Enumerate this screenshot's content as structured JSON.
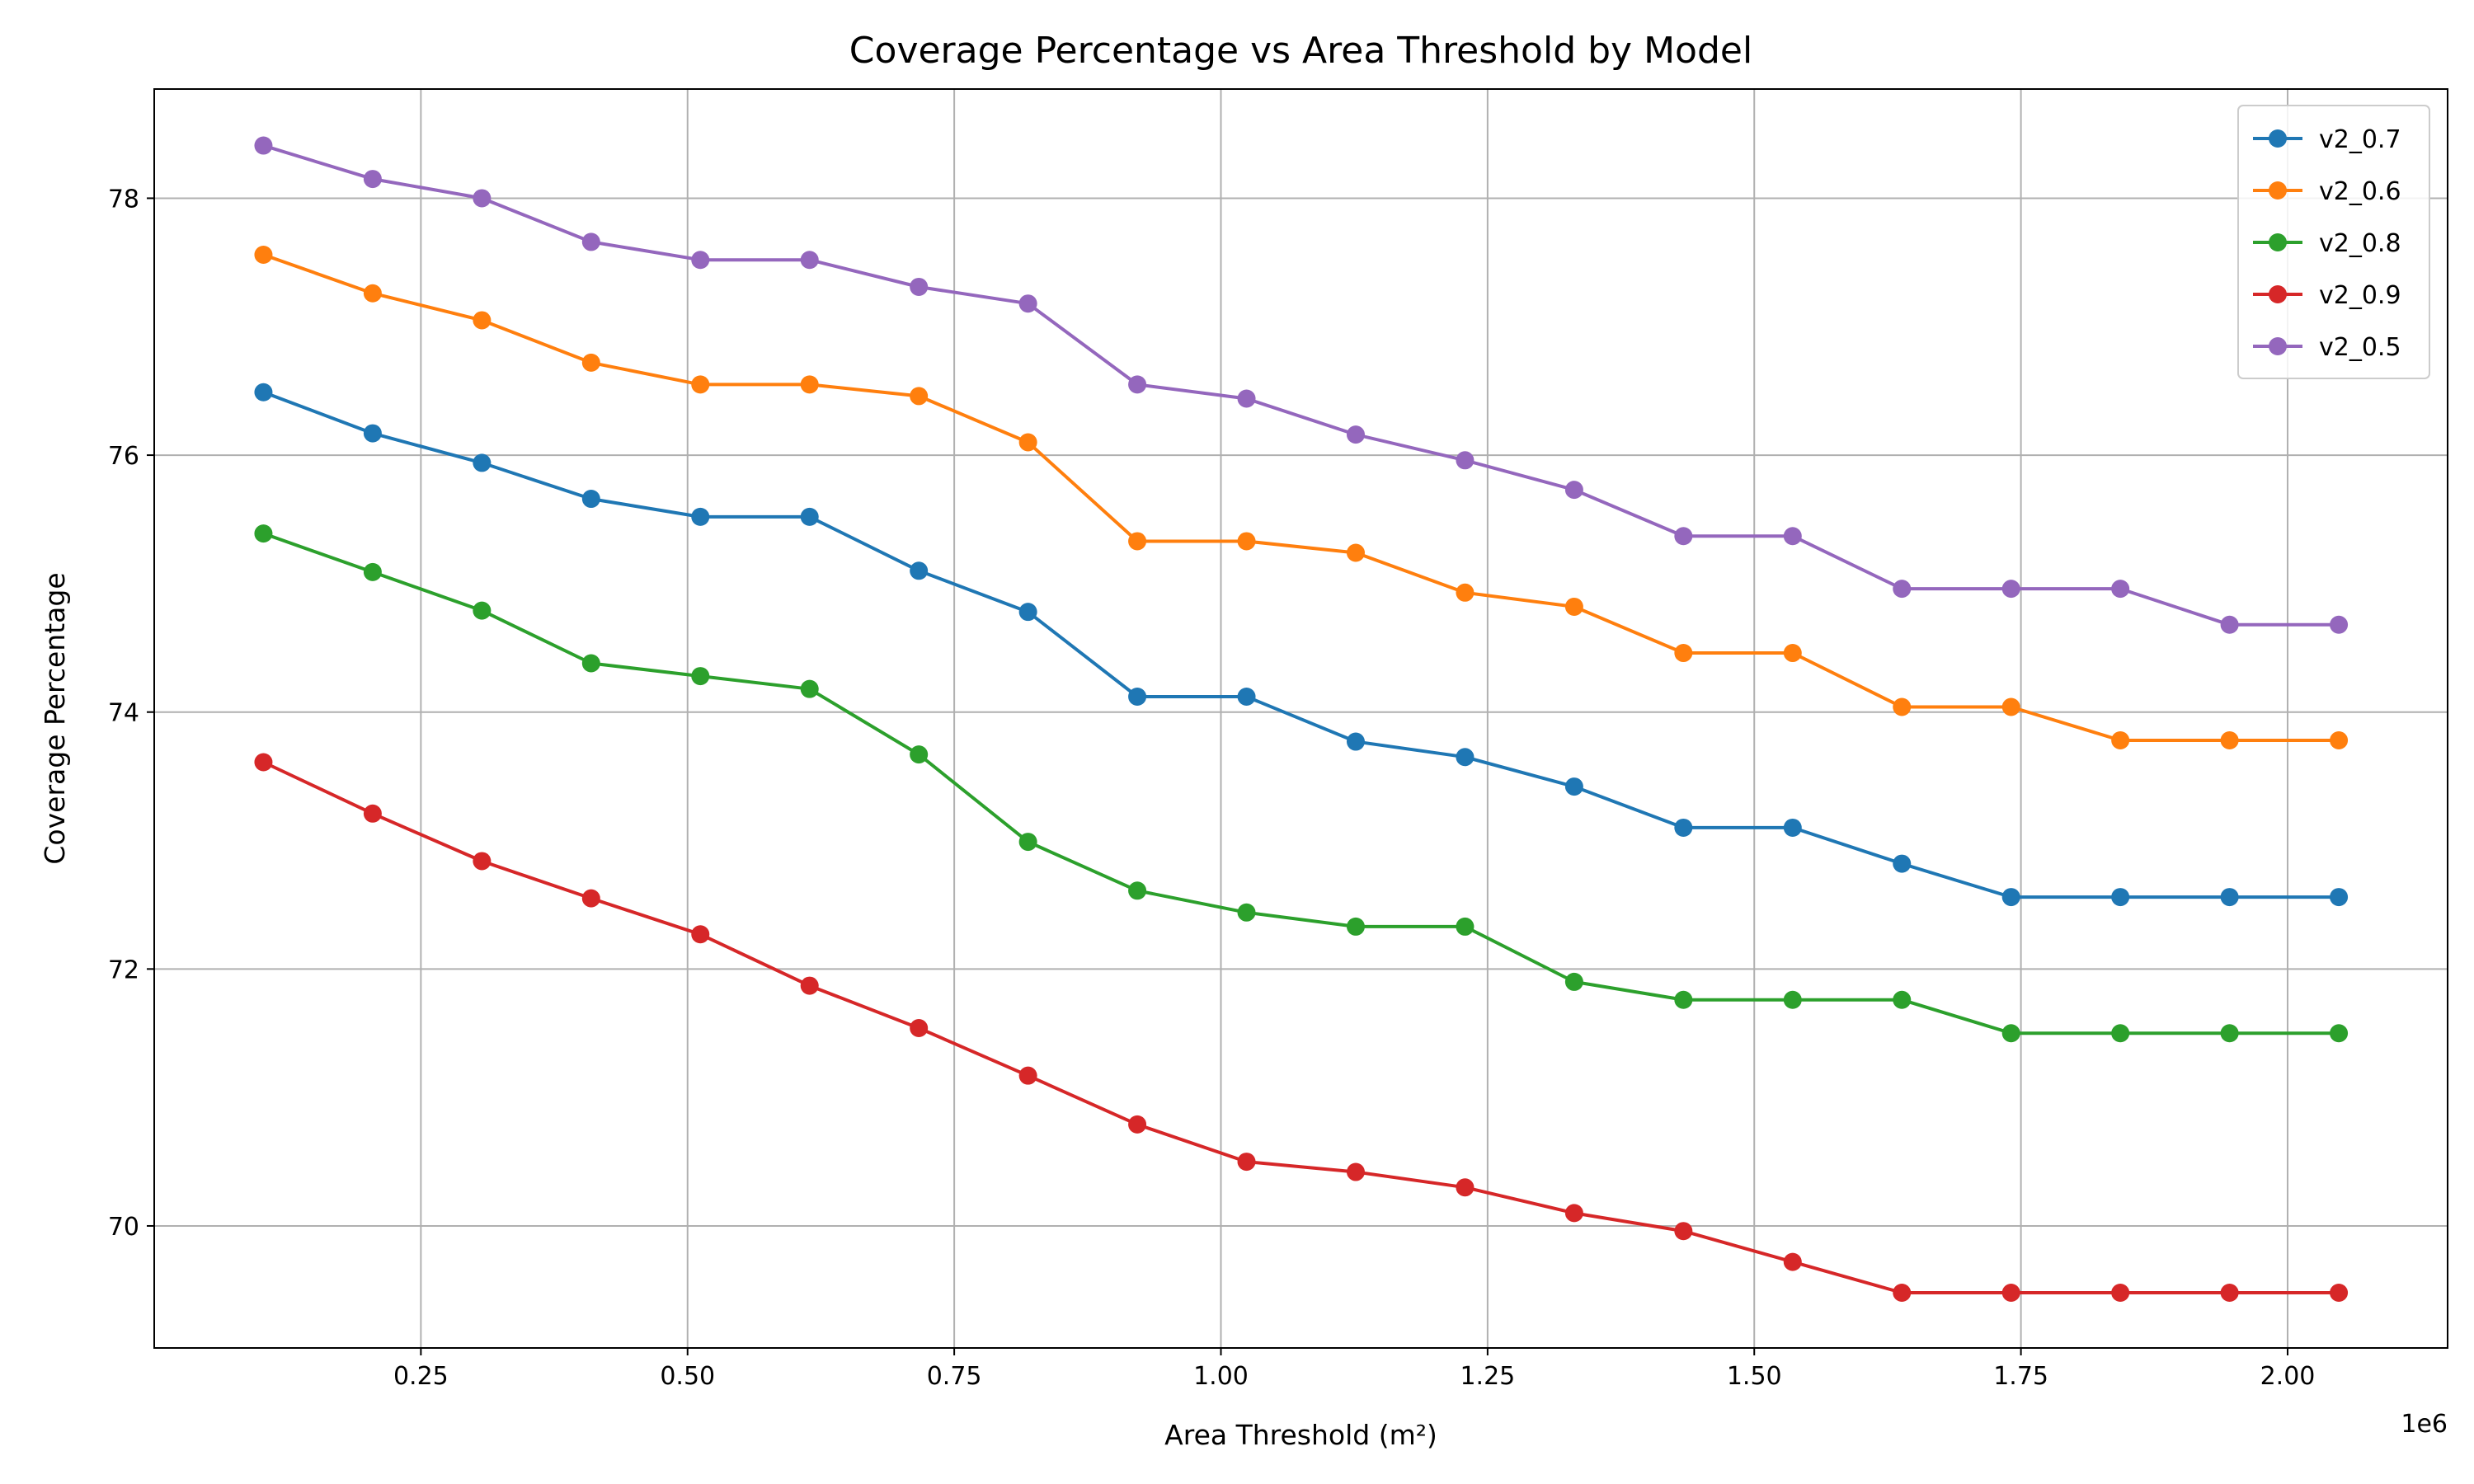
{
  "chart_data": {
    "type": "line",
    "title": "Coverage Percentage vs Area Threshold by Model",
    "xlabel": "Area Threshold (m²)",
    "ylabel": "Coverage Percentage",
    "x_offset_label": "1e6",
    "xlim": [
      0,
      2.15
    ],
    "ylim": [
      69.05,
      78.85
    ],
    "xticks": [
      0.25,
      0.5,
      0.75,
      1.0,
      1.25,
      1.5,
      1.75,
      2.0
    ],
    "xtick_labels": [
      "0.25",
      "0.50",
      "0.75",
      "1.00",
      "1.25",
      "1.50",
      "1.75",
      "2.00"
    ],
    "yticks": [
      70,
      72,
      74,
      76,
      78
    ],
    "ytick_labels": [
      "70",
      "72",
      "74",
      "76",
      "78"
    ],
    "grid": true,
    "legend_position": "top-right",
    "x": [
      0.1024,
      0.2048,
      0.3072,
      0.4096,
      0.512,
      0.6144,
      0.7168,
      0.8192,
      0.9216,
      1.024,
      1.1264,
      1.2288,
      1.3312,
      1.4336,
      1.536,
      1.6384,
      1.7408,
      1.8432,
      1.9456,
      2.048
    ],
    "series": [
      {
        "name": "v2_0.7",
        "color": "#1f77b4",
        "values": [
          76.49,
          76.17,
          75.94,
          75.66,
          75.52,
          75.52,
          75.1,
          74.78,
          74.12,
          74.12,
          73.77,
          73.65,
          73.42,
          73.1,
          73.1,
          72.82,
          72.56,
          72.56,
          72.56,
          72.56
        ]
      },
      {
        "name": "v2_0.6",
        "color": "#ff7f0e",
        "values": [
          77.56,
          77.26,
          77.05,
          76.72,
          76.55,
          76.55,
          76.46,
          76.1,
          75.33,
          75.33,
          75.24,
          74.93,
          74.82,
          74.46,
          74.46,
          74.04,
          74.04,
          73.78,
          73.78,
          73.78
        ]
      },
      {
        "name": "v2_0.8",
        "color": "#2ca02c",
        "values": [
          75.39,
          75.09,
          74.79,
          74.38,
          74.28,
          74.18,
          73.67,
          72.99,
          72.61,
          72.44,
          72.33,
          72.33,
          71.9,
          71.76,
          71.76,
          71.76,
          71.5,
          71.5,
          71.5,
          71.5
        ]
      },
      {
        "name": "v2_0.9",
        "color": "#d62728",
        "values": [
          73.61,
          73.21,
          72.84,
          72.55,
          72.27,
          71.87,
          71.54,
          71.17,
          70.79,
          70.5,
          70.42,
          70.3,
          70.1,
          69.96,
          69.72,
          69.48,
          69.48,
          69.48,
          69.48,
          69.48
        ]
      },
      {
        "name": "v2_0.5",
        "color": "#9467bd",
        "values": [
          78.41,
          78.15,
          78.0,
          77.66,
          77.52,
          77.52,
          77.31,
          77.18,
          76.55,
          76.44,
          76.16,
          75.96,
          75.73,
          75.37,
          75.37,
          74.96,
          74.96,
          74.96,
          74.68,
          74.68
        ]
      }
    ]
  }
}
